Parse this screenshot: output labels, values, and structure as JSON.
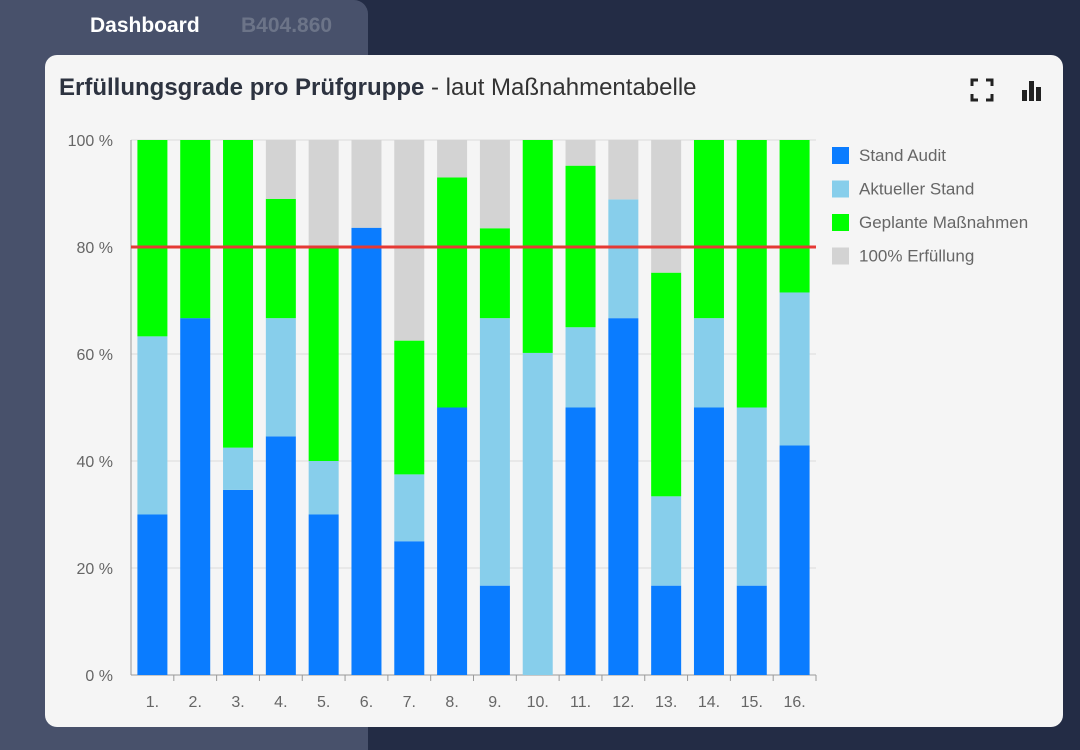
{
  "tabs": {
    "dashboard": "Dashboard",
    "code": "B404.860"
  },
  "card": {
    "title_bold": "Erfüllungsgrade pro Prüfgruppe",
    "title_sub": "- laut Maßnahmentabelle"
  },
  "icons": {
    "fullscreen": "fullscreen-icon",
    "chart_type": "bar-chart-icon"
  },
  "colors": {
    "stand_audit": "#0a7cff",
    "aktueller_stand": "#87ceeb",
    "geplante": "#00ff00",
    "erfuellung": "#d3d3d3",
    "threshold": "#e53935"
  },
  "chart_data": {
    "type": "bar",
    "stacked": true,
    "title": "Erfüllungsgrade pro Prüfgruppe",
    "categories": [
      "1.",
      "2.",
      "3.",
      "4.",
      "5.",
      "6.",
      "7.",
      "8.",
      "9.",
      "10.",
      "11.",
      "12.",
      "13.",
      "14.",
      "15.",
      "16."
    ],
    "ylim": [
      0,
      100
    ],
    "yticks": [
      "0 %",
      "20 %",
      "40 %",
      "60 %",
      "80 %",
      "100 %"
    ],
    "threshold": 80,
    "legend_position": "right",
    "series": [
      {
        "name": "Stand Audit",
        "values": [
          30,
          66.7,
          34.6,
          44.6,
          30,
          83.6,
          25,
          50,
          16.7,
          0,
          50,
          66.7,
          16.7,
          50,
          16.7,
          42.9
        ]
      },
      {
        "name": "Aktueller Stand",
        "values": [
          33.3,
          0,
          7.9,
          22.1,
          10,
          0,
          12.5,
          0,
          50,
          60.2,
          15,
          22.2,
          16.7,
          16.7,
          33.3,
          28.6
        ]
      },
      {
        "name": "Geplante Maßnahmen",
        "values": [
          36.7,
          33.3,
          57.5,
          22.3,
          40,
          0,
          25,
          43,
          16.8,
          39.8,
          30.2,
          0,
          41.8,
          33.3,
          50,
          28.5
        ]
      },
      {
        "name": "100% Erfüllung",
        "values": [
          0,
          0,
          0,
          11,
          20,
          16.4,
          37.5,
          7,
          16.5,
          0,
          4.8,
          11.1,
          24.8,
          0,
          0,
          0
        ]
      }
    ]
  }
}
